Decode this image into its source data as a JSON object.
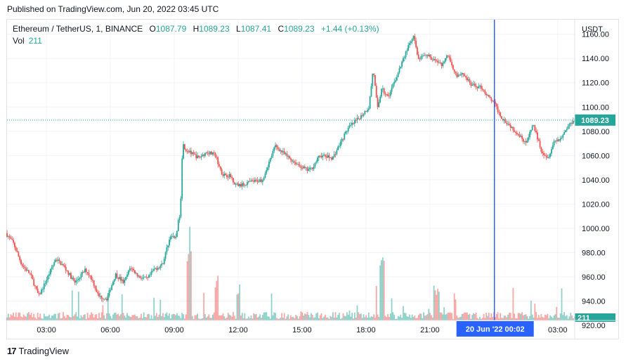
{
  "header": {
    "published": "Published on TradingView.com, Jun 20, 2022 03:45 UTC"
  },
  "legend": {
    "symbol": "Ethereum / TetherUS, 1, BINANCE",
    "o_label": "O",
    "o_value": "1087.79",
    "h_label": "H",
    "h_value": "1089.23",
    "l_label": "L",
    "l_value": "1087.41",
    "c_label": "C",
    "c_value": "1089.23",
    "change": "+1.44 (+0.13%)",
    "vol_label": "Vol",
    "vol_value": "211"
  },
  "footer": {
    "brand": "TradingView",
    "logo_text": "17"
  },
  "colors": {
    "up": "#26a69a",
    "down": "#ef5350",
    "crosshair": "#2962ff",
    "grid": "#f0f3fa",
    "axis_text": "#131722"
  },
  "chart_data": {
    "type": "candlestick",
    "ylabel": "USDT",
    "ylim": [
      924,
      1172
    ],
    "y_ticks": [
      "1160.00",
      "1140.00",
      "1120.00",
      "1100.00",
      "1080.00",
      "1060.00",
      "1040.00",
      "1020.00",
      "1000.00",
      "980.00",
      "960.00",
      "940.00",
      "920.00"
    ],
    "y_tick_values": [
      1160,
      1140,
      1120,
      1100,
      1080,
      1060,
      1040,
      1020,
      1000,
      980,
      960,
      940,
      920
    ],
    "x_ticks": [
      "03:00",
      "06:00",
      "09:00",
      "12:00",
      "15:00",
      "18:00",
      "21:00",
      "03:00"
    ],
    "x_tick_hours": [
      3,
      6,
      9,
      12,
      15,
      18,
      21,
      27
    ],
    "x_range_hours": [
      1.15,
      27.8
    ],
    "last_price": "1089.23",
    "last_price_value": 1089.23,
    "last_volume": "211",
    "crosshair_label": "20 Jun '22   00:02",
    "crosshair_hour": 24.03,
    "path_hours": [
      1.15,
      1.5,
      1.9,
      2.3,
      2.7,
      3.0,
      3.5,
      3.9,
      4.4,
      4.9,
      5.2,
      5.5,
      5.9,
      6.3,
      6.7,
      7.0,
      7.4,
      7.8,
      8.1,
      8.5,
      8.9,
      9.1,
      9.35,
      9.45,
      9.6,
      9.85,
      10.2,
      10.6,
      11.0,
      11.3,
      11.7,
      11.95,
      12.15,
      12.6,
      13.2,
      13.8,
      14.3,
      14.9,
      15.3,
      15.5,
      15.9,
      16.5,
      17.2,
      17.8,
      18.2,
      18.4,
      18.6,
      18.8,
      19.1,
      19.5,
      20.0,
      20.3,
      20.5,
      21.0,
      21.6,
      21.9,
      22.3,
      22.6,
      23.0,
      23.5,
      23.8,
      24.05,
      24.4,
      24.8,
      25.2,
      25.6,
      25.9,
      26.3,
      26.6,
      26.9,
      27.2,
      27.5,
      27.8
    ],
    "path_values": [
      996,
      988,
      970,
      962,
      944,
      955,
      975,
      968,
      955,
      966,
      958,
      944,
      942,
      962,
      955,
      968,
      960,
      958,
      966,
      970,
      995,
      990,
      1015,
      1070,
      1065,
      1062,
      1058,
      1063,
      1060,
      1045,
      1043,
      1036,
      1035,
      1038,
      1040,
      1068,
      1060,
      1052,
      1048,
      1049,
      1060,
      1058,
      1082,
      1092,
      1100,
      1132,
      1098,
      1115,
      1108,
      1125,
      1148,
      1158,
      1140,
      1142,
      1135,
      1143,
      1126,
      1128,
      1118,
      1116,
      1108,
      1104,
      1092,
      1085,
      1078,
      1070,
      1086,
      1064,
      1058,
      1072,
      1074,
      1083,
      1089.23
    ]
  }
}
